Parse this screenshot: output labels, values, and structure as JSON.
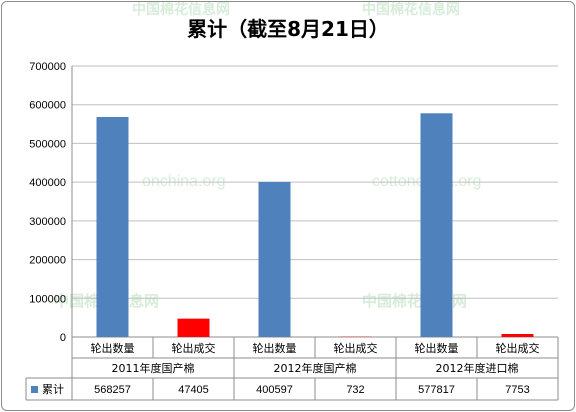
{
  "watermark": {
    "cn": "中国棉花信息网",
    "en_left": "onchina.org",
    "en_right": "cottonchina.org"
  },
  "chart_data": {
    "type": "bar",
    "title": "累计（截至8月21日）",
    "groups": [
      {
        "label": "2011年度国产棉",
        "items": [
          {
            "label": "轮出数量",
            "value": 568257
          },
          {
            "label": "轮出成交",
            "value": 47405
          }
        ]
      },
      {
        "label": "2012年度国产棉",
        "items": [
          {
            "label": "轮出数量",
            "value": 400597
          },
          {
            "label": "轮出成交",
            "value": 732
          }
        ]
      },
      {
        "label": "2012年度进口棉",
        "items": [
          {
            "label": "轮出数量",
            "value": 577817
          },
          {
            "label": "轮出成交",
            "value": 7753
          }
        ]
      }
    ],
    "series_name": "累计",
    "ylim": [
      0,
      700000
    ],
    "yticks": [
      0,
      100000,
      200000,
      300000,
      400000,
      500000,
      600000,
      700000
    ],
    "grid": true,
    "legend": "data-table",
    "colors": {
      "quantity": "#4f81bd",
      "deal": "#ff0000"
    }
  }
}
